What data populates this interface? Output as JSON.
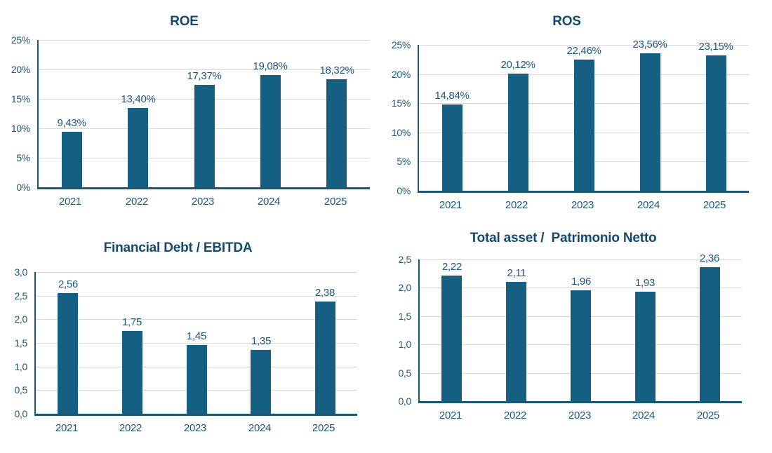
{
  "page": {
    "background": "#ffffff"
  },
  "colors": {
    "bar": "#156082",
    "axis": "#175a78",
    "gridline": "#d9d9d9",
    "tick_label": "#1b587e",
    "value_label": "#1b587e",
    "title": "#134a6e"
  },
  "chart_data": [
    {
      "id": "roe",
      "type": "bar",
      "title": "ROE",
      "categories": [
        "2021",
        "2022",
        "2023",
        "2024",
        "2025"
      ],
      "values": [
        9.43,
        13.4,
        17.37,
        19.08,
        18.32
      ],
      "value_labels": [
        "9,43%",
        "13,40%",
        "17,37%",
        "19,08%",
        "18,32%"
      ],
      "ylim": [
        0,
        25
      ],
      "y_ticks": [
        {
          "value": 0,
          "label": "0%"
        },
        {
          "value": 5,
          "label": "5%"
        },
        {
          "value": 10,
          "label": "10%"
        },
        {
          "value": 15,
          "label": "15%"
        },
        {
          "value": 20,
          "label": "20%"
        },
        {
          "value": 25,
          "label": "25%"
        }
      ],
      "grid": true,
      "legend": "none"
    },
    {
      "id": "ros",
      "type": "bar",
      "title": "ROS",
      "categories": [
        "2021",
        "2022",
        "2023",
        "2024",
        "2025"
      ],
      "values": [
        14.84,
        20.12,
        22.46,
        23.56,
        23.15
      ],
      "value_labels": [
        "14,84%",
        "20,12%",
        "22,46%",
        "23,56%",
        "23,15%"
      ],
      "ylim": [
        0,
        25
      ],
      "y_ticks": [
        {
          "value": 0,
          "label": "0%"
        },
        {
          "value": 5,
          "label": "5%"
        },
        {
          "value": 10,
          "label": "10%"
        },
        {
          "value": 15,
          "label": "15%"
        },
        {
          "value": 20,
          "label": "20%"
        },
        {
          "value": 25,
          "label": "25%"
        }
      ],
      "grid": true,
      "legend": "none"
    },
    {
      "id": "financial-debt-ebitda",
      "type": "bar",
      "title": "Financial Debt / EBITDA",
      "categories": [
        "2021",
        "2022",
        "2023",
        "2024",
        "2025"
      ],
      "values": [
        2.56,
        1.75,
        1.45,
        1.35,
        2.38
      ],
      "value_labels": [
        "2,56",
        "1,75",
        "1,45",
        "1,35",
        "2,38"
      ],
      "ylim": [
        0,
        3
      ],
      "y_ticks": [
        {
          "value": 0,
          "label": "0,0"
        },
        {
          "value": 0.5,
          "label": "0,5"
        },
        {
          "value": 1,
          "label": "1,0"
        },
        {
          "value": 1.5,
          "label": "1,5"
        },
        {
          "value": 2,
          "label": "2,0"
        },
        {
          "value": 2.5,
          "label": "2,5"
        },
        {
          "value": 3,
          "label": "3,0"
        }
      ],
      "grid": true,
      "legend": "none"
    },
    {
      "id": "total-asset-patrimonio-netto",
      "type": "bar",
      "title": "Total asset /  Patrimonio Netto",
      "categories": [
        "2021",
        "2022",
        "2023",
        "2024",
        "2025"
      ],
      "values": [
        2.22,
        2.11,
        1.96,
        1.93,
        2.36
      ],
      "value_labels": [
        "2,22",
        "2,11",
        "1,96",
        "1,93",
        "2,36"
      ],
      "ylim": [
        0,
        2.5
      ],
      "y_ticks": [
        {
          "value": 0,
          "label": "0,0"
        },
        {
          "value": 0.5,
          "label": "0,5"
        },
        {
          "value": 1,
          "label": "1,0"
        },
        {
          "value": 1.5,
          "label": "1,5"
        },
        {
          "value": 2,
          "label": "2,0"
        },
        {
          "value": 2.5,
          "label": "2,5"
        }
      ],
      "grid": true,
      "legend": "none"
    }
  ]
}
